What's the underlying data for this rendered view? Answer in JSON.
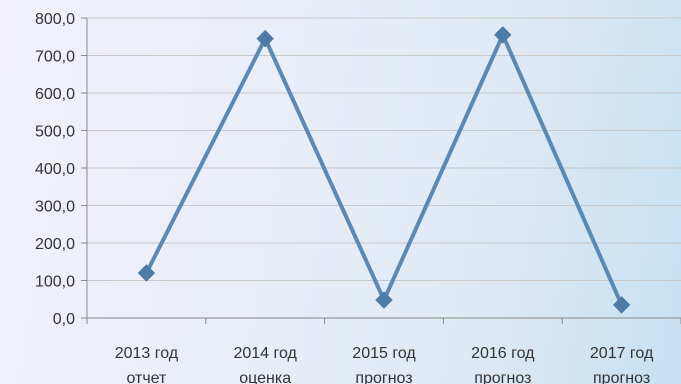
{
  "chart_data": {
    "type": "line",
    "title": "",
    "xlabel": "",
    "ylabel": "",
    "ylim": [
      0,
      800
    ],
    "ytick_step": 100,
    "ytick_labels": [
      "0,0",
      "100,0",
      "200,0",
      "300,0",
      "400,0",
      "500,0",
      "600,0",
      "700,0",
      "800,0"
    ],
    "categories": [
      [
        "2013 год",
        "отчет"
      ],
      [
        "2014 год",
        "оценка"
      ],
      [
        "2015 год",
        "прогноз"
      ],
      [
        "2016 год",
        "прогноз"
      ],
      [
        "2017 год",
        "прогноз"
      ]
    ],
    "series": [
      {
        "values": [
          120,
          745,
          48,
          755,
          35
        ]
      }
    ],
    "grid": true,
    "legend": "none",
    "colors": {
      "line": "#5b89b4",
      "marker": "#4e7ba6"
    },
    "marker": "diamond-icon"
  }
}
